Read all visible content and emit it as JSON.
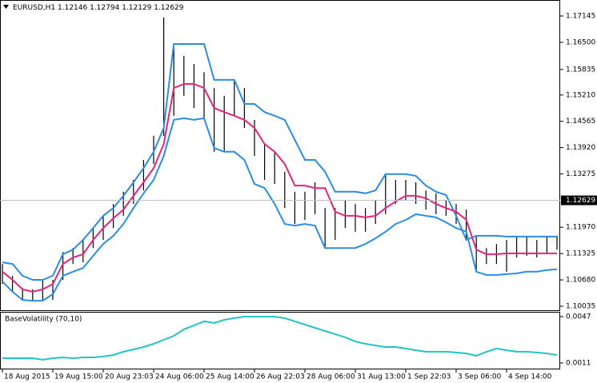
{
  "chart_data": [
    {
      "type": "ohlc",
      "header": {
        "symbol": "EURUSD,H1",
        "open": 1.12146,
        "high": 1.12794,
        "low": 1.12129,
        "close": 1.12629
      },
      "categories": [
        "18 Aug 2015",
        null,
        null,
        null,
        null,
        "19 Aug 15:00",
        null,
        null,
        null,
        null,
        "20 Aug 23:03",
        null,
        null,
        null,
        null,
        "24 Aug 06:00",
        null,
        null,
        null,
        null,
        "25 Aug 14:00",
        null,
        null,
        null,
        null,
        "26 Aug 22:03",
        null,
        null,
        null,
        null,
        "28 Aug 06:00",
        null,
        null,
        null,
        null,
        "31 Aug 13:00",
        null,
        null,
        null,
        null,
        "1 Sep 22:03",
        null,
        null,
        null,
        null,
        "3 Sep 06:00",
        null,
        null,
        null,
        null,
        "4 Sep 14:00",
        null,
        null,
        null,
        null,
        null
      ],
      "high": [
        1.1107,
        1.1078,
        1.1048,
        1.1045,
        1.1068,
        1.1068,
        1.1136,
        1.1146,
        1.1166,
        1.1195,
        1.1225,
        1.1254,
        1.1284,
        1.1313,
        1.1362,
        1.1421,
        1.1711,
        1.1636,
        1.1617,
        1.1597,
        1.1577,
        1.1538,
        1.1519,
        1.1558,
        1.1538,
        1.146,
        1.1401,
        1.1382,
        1.1333,
        1.1284,
        1.1284,
        1.1307,
        1.1244,
        1.1244,
        1.1264,
        1.1254,
        1.1244,
        1.1264,
        1.1327,
        1.1313,
        1.1313,
        1.1307,
        1.1287,
        1.128,
        1.1264,
        1.1254,
        1.124,
        1.1176,
        1.1146,
        1.1156,
        1.1166,
        1.1176,
        1.1176,
        1.1166,
        1.1176,
        1.1176
      ],
      "low": [
        1.1058,
        1.1039,
        1.1017,
        1.1017,
        1.1017,
        1.1019,
        1.1068,
        1.1107,
        1.1111,
        1.1146,
        1.1166,
        1.1195,
        1.1225,
        1.1254,
        1.1287,
        1.1352,
        1.1421,
        1.147,
        1.1519,
        1.1489,
        1.146,
        1.1382,
        1.1382,
        1.147,
        1.144,
        1.1372,
        1.1313,
        1.1303,
        1.1244,
        1.1205,
        1.1215,
        1.1229,
        1.1146,
        1.1166,
        1.1195,
        1.1186,
        1.1186,
        1.1205,
        1.1229,
        1.1254,
        1.1264,
        1.1254,
        1.124,
        1.1229,
        1.1225,
        1.1205,
        1.1166,
        1.1088,
        1.1107,
        1.1107,
        1.1088,
        1.1123,
        1.1127,
        1.1123,
        1.1131,
        1.1142
      ],
      "bar_color": "#000000",
      "series": [
        {
          "color": "#2b8de6",
          "values": [
            1.1111,
            1.1107,
            1.1078,
            1.1068,
            1.1068,
            1.1078,
            1.1131,
            1.1142,
            1.1166,
            1.1195,
            1.1225,
            1.1244,
            1.1274,
            1.1307,
            1.1342,
            1.1382,
            1.144,
            1.1646,
            1.1646,
            1.1646,
            1.1646,
            1.1558,
            1.1558,
            1.1558,
            1.1499,
            1.1499,
            1.1479,
            1.147,
            1.146,
            1.1411,
            1.1362,
            1.1362,
            1.1333,
            1.1284,
            1.1284,
            1.1284,
            1.128,
            1.1287,
            1.1327,
            1.1327,
            1.1327,
            1.1323,
            1.1299,
            1.1284,
            1.1276,
            1.1225,
            1.1166,
            1.1176,
            1.1176,
            1.1176,
            1.1174,
            1.1174,
            1.1174,
            1.1174,
            1.1174,
            1.1174
          ]
        },
        {
          "color": "#e8237a",
          "values": [
            1.1088,
            1.1068,
            1.1045,
            1.1039,
            1.1045,
            1.1058,
            1.1107,
            1.1123,
            1.1131,
            1.1166,
            1.1195,
            1.1219,
            1.124,
            1.1274,
            1.1307,
            1.1342,
            1.1401,
            1.1538,
            1.1548,
            1.1548,
            1.1538,
            1.1489,
            1.1479,
            1.147,
            1.146,
            1.144,
            1.1401,
            1.1382,
            1.1352,
            1.1299,
            1.1299,
            1.1293,
            1.1293,
            1.1235,
            1.1225,
            1.1225,
            1.1221,
            1.1225,
            1.1244,
            1.126,
            1.1274,
            1.1274,
            1.1268,
            1.1254,
            1.1244,
            1.1235,
            1.1215,
            1.1142,
            1.1131,
            1.1131,
            1.1133,
            1.1133,
            1.1133,
            1.1133,
            1.1133,
            1.1133
          ]
        },
        {
          "color": "#2b8de6",
          "values": [
            1.1064,
            1.1039,
            1.1019,
            1.1017,
            1.1017,
            1.1033,
            1.1078,
            1.1088,
            1.1097,
            1.1127,
            1.1156,
            1.1176,
            1.1205,
            1.1244,
            1.128,
            1.1313,
            1.1372,
            1.146,
            1.1464,
            1.146,
            1.1464,
            1.1391,
            1.1382,
            1.1382,
            1.1362,
            1.1303,
            1.1293,
            1.1254,
            1.1205,
            1.1201,
            1.1205,
            1.1201,
            1.1146,
            1.1146,
            1.1146,
            1.1146,
            1.1156,
            1.117,
            1.1186,
            1.1205,
            1.1215,
            1.1229,
            1.1225,
            1.1221,
            1.1209,
            1.1195,
            1.1186,
            1.1088,
            1.108,
            1.108,
            1.1082,
            1.1084,
            1.1088,
            1.1088,
            1.1092,
            1.1094
          ]
        }
      ],
      "ylim": [
        1.09917,
        1.17537
      ],
      "yticks": [
        1.17145,
        {
          "value": 1.165,
          "label": "1.16500"
        },
        1.15835,
        {
          "value": 1.1521,
          "label": "1.15210"
        },
        1.14565,
        {
          "value": 1.1392,
          "label": "1.13920"
        },
        1.13275,
        {
          "value": 1.1197,
          "label": "1.11970"
        },
        1.11325,
        {
          "value": 1.1068,
          "label": "1.10680"
        },
        1.10035
      ],
      "current_price": 1.12629
    },
    {
      "type": "line",
      "title": "BaseVolatility (70,10)",
      "series": [
        {
          "color": "#22c4c4",
          "values": [
            0.00147,
            0.00147,
            0.00147,
            0.00147,
            0.00135,
            0.00147,
            0.00153,
            0.00147,
            0.00153,
            0.00153,
            0.0016,
            0.00172,
            0.00197,
            0.00215,
            0.00234,
            0.00259,
            0.0029,
            0.00321,
            0.00371,
            0.00402,
            0.00433,
            0.0042,
            0.00445,
            0.00458,
            0.0047,
            0.0047,
            0.0047,
            0.0047,
            0.00458,
            0.00433,
            0.00408,
            0.00383,
            0.00358,
            0.00334,
            0.00309,
            0.00277,
            0.00259,
            0.00246,
            0.00234,
            0.00234,
            0.00222,
            0.00209,
            0.00197,
            0.00197,
            0.00197,
            0.00191,
            0.00184,
            0.00166,
            0.00197,
            0.00222,
            0.00209,
            0.00197,
            0.00197,
            0.00191,
            0.00184,
            0.00172
          ]
        }
      ],
      "ylim": [
        0.0006,
        0.00501
      ],
      "yticks": [
        0.0047,
        0.0011
      ]
    }
  ]
}
